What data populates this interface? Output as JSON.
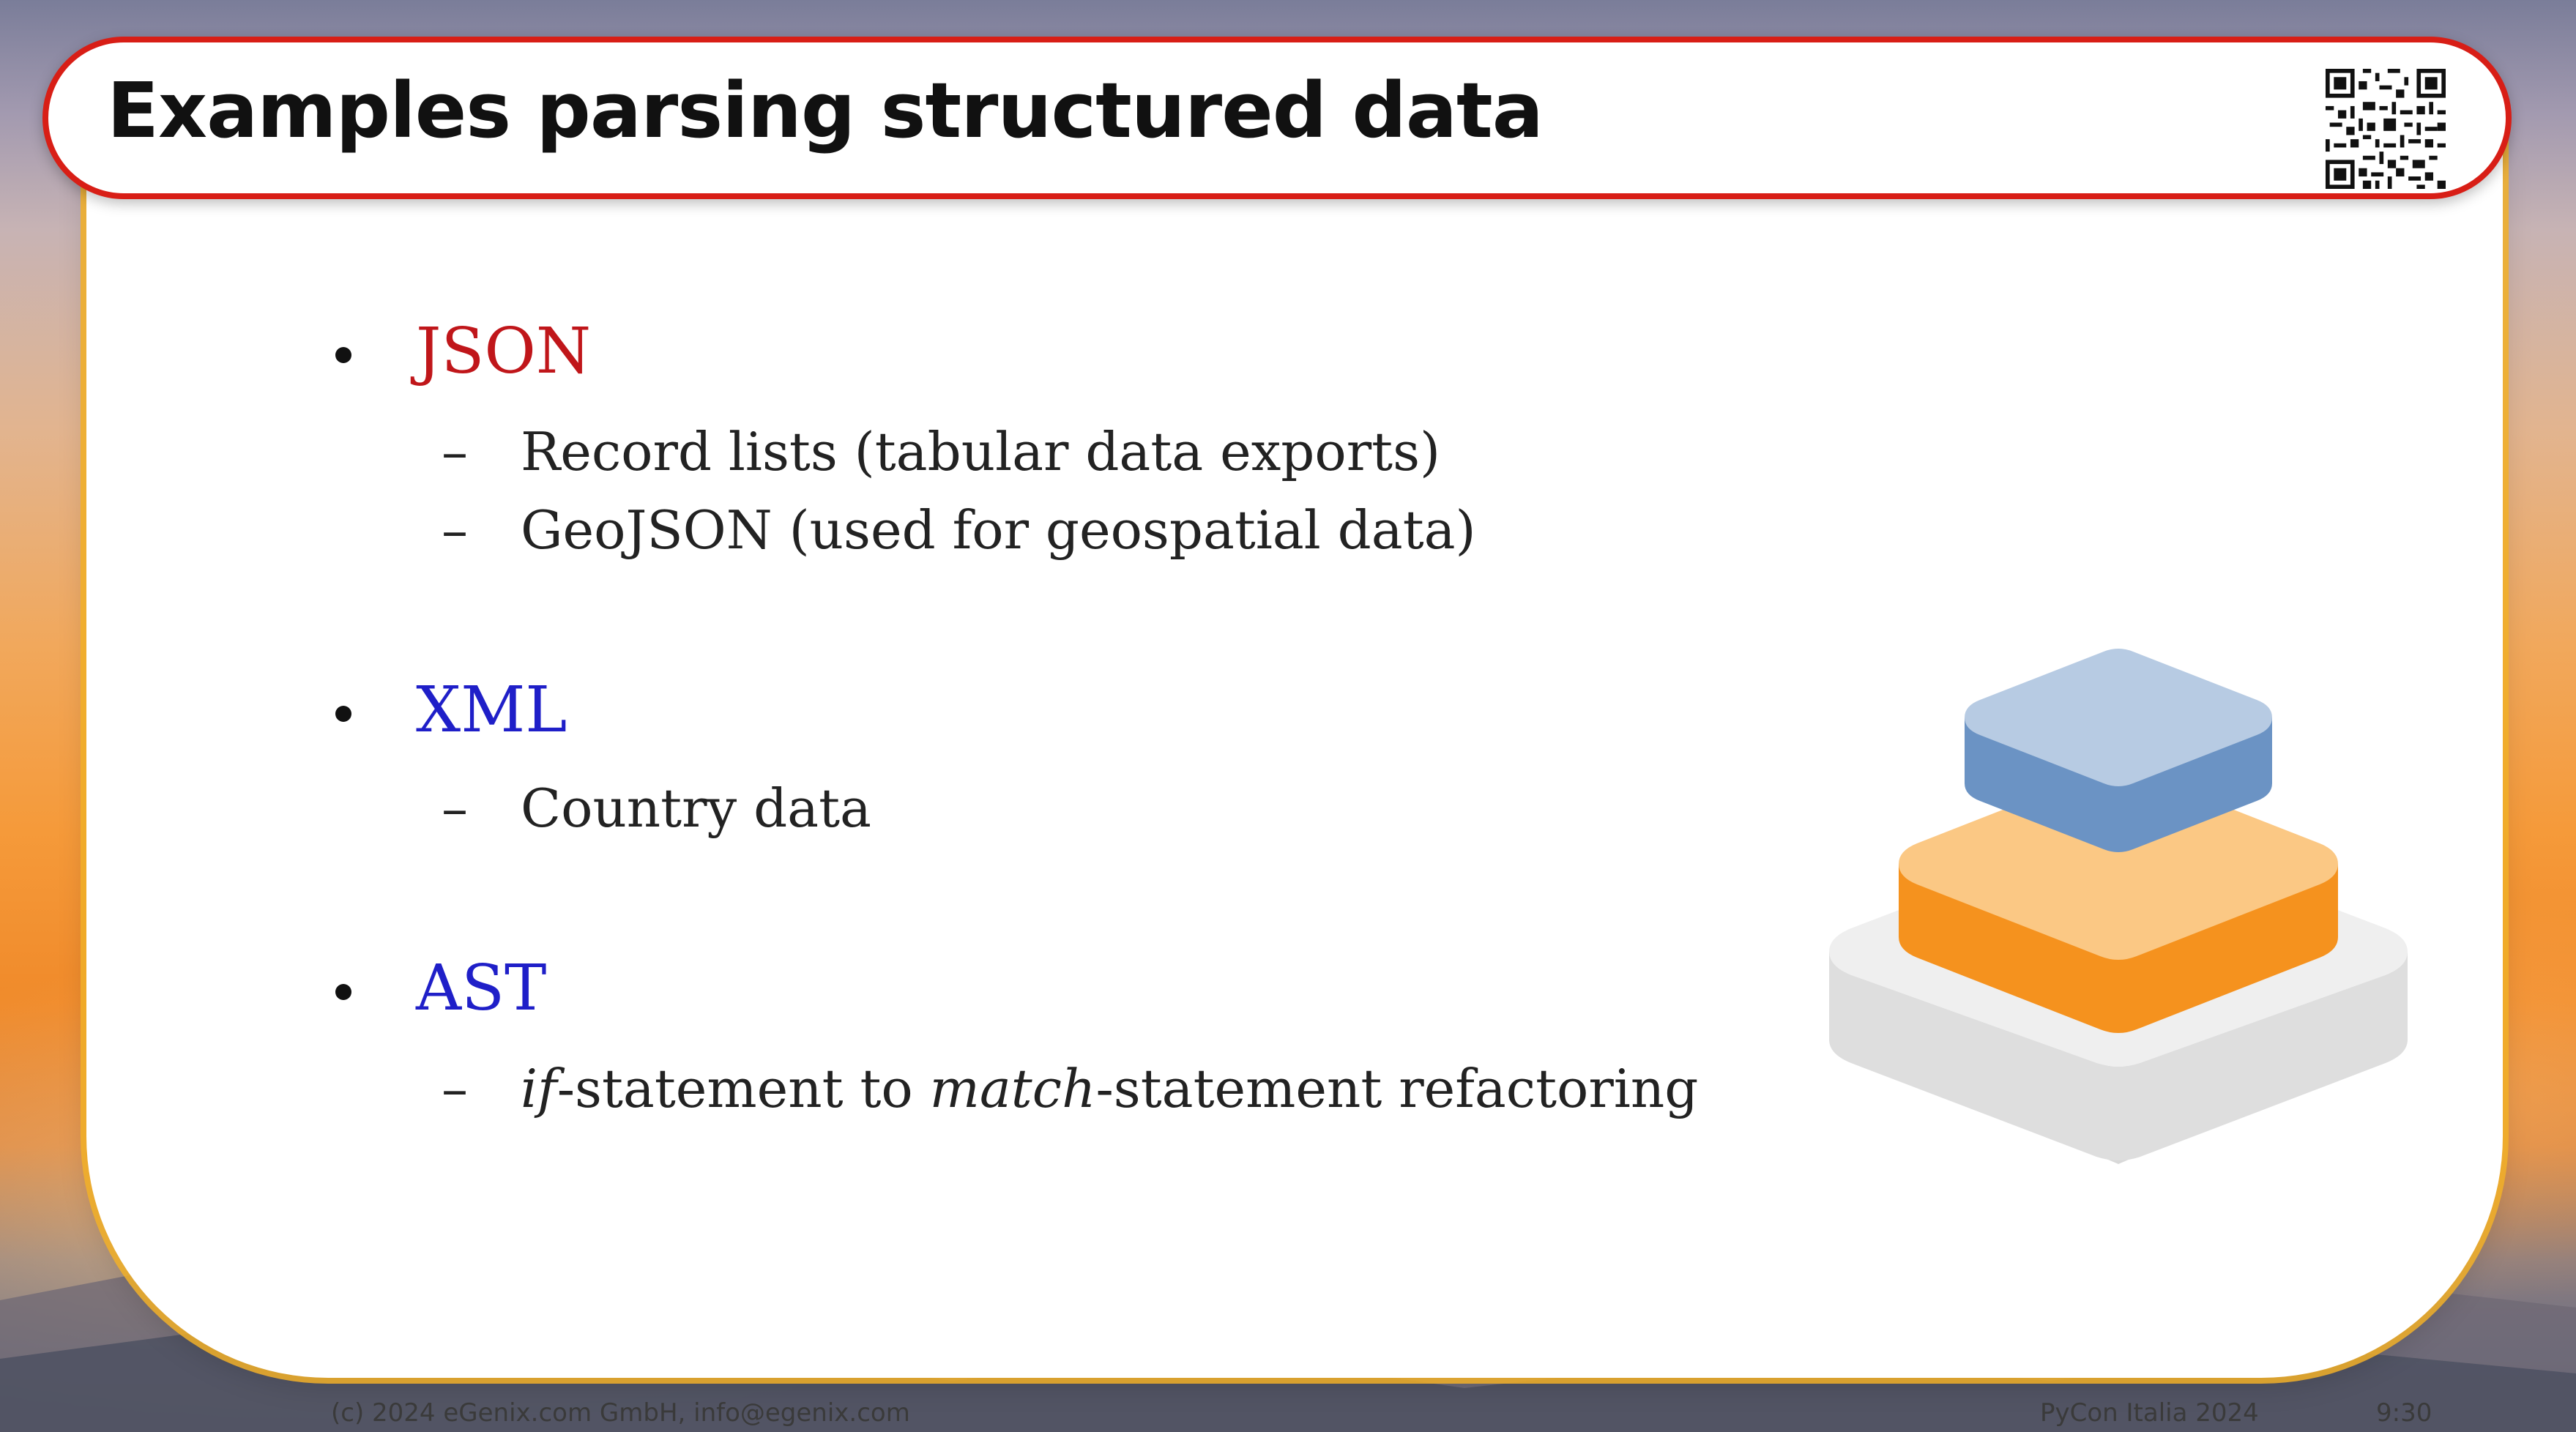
{
  "slide": {
    "title": "Examples parsing structured data",
    "colors": {
      "title_border": "#d81e16",
      "panel_border": "#f2b028",
      "json_label": "#c0161a",
      "xml_label": "#1f1fc8",
      "ast_label": "#1f1fc8",
      "layer_top": "#6b93c4",
      "layer_middle": "#f5921e",
      "layer_bottom": "#e4e4e4"
    },
    "bullets": [
      {
        "label": "JSON",
        "subitems": [
          "Record lists (tabular data exports)",
          "GeoJSON (used for geospatial data)"
        ]
      },
      {
        "label": "XML",
        "subitems": [
          "Country data"
        ]
      },
      {
        "label": "AST",
        "subitem": {
          "part1_italic": "if",
          "part2": "-statement to ",
          "part3_italic": "match",
          "part4": "-statement refactoring"
        }
      }
    ],
    "sub_dash": "–"
  },
  "footer": {
    "copyright": "(c) 2024 eGenix.com GmbH, info@egenix.com",
    "event": "PyCon Italia 2024",
    "timestamp": "9:30"
  },
  "icons": {
    "qr": "qr-code-icon",
    "stack": "layer-stack-icon"
  }
}
